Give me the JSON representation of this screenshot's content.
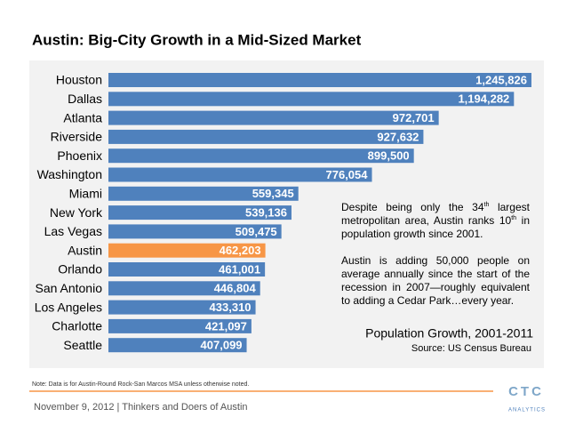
{
  "chart_data": {
    "type": "bar",
    "orientation": "horizontal",
    "title": "Austin: Big-City Growth in a Mid-Sized Market",
    "categories": [
      "Houston",
      "Dallas",
      "Atlanta",
      "Riverside",
      "Phoenix",
      "Washington",
      "Miami",
      "New York",
      "Las Vegas",
      "Austin",
      "Orlando",
      "San Antonio",
      "Los Angeles",
      "Charlotte",
      "Seattle"
    ],
    "values": [
      1245826,
      1194282,
      972701,
      927632,
      899500,
      776054,
      559345,
      539136,
      509475,
      462203,
      461001,
      446804,
      433310,
      421097,
      407099
    ],
    "value_labels": [
      "1,245,826",
      "1,194,282",
      "972,701",
      "927,632",
      "899,500",
      "776,054",
      "559,345",
      "539,136",
      "509,475",
      "462,203",
      "461,001",
      "446,804",
      "433,310",
      "421,097",
      "407,099"
    ],
    "colors": [
      "#4f81bd",
      "#4f81bd",
      "#4f81bd",
      "#4f81bd",
      "#4f81bd",
      "#4f81bd",
      "#4f81bd",
      "#4f81bd",
      "#4f81bd",
      "#f79646",
      "#4f81bd",
      "#4f81bd",
      "#4f81bd",
      "#4f81bd",
      "#4f81bd"
    ],
    "annotation": {
      "paragraph1": [
        "Despite being only the 34",
        "th",
        " largest metropolitan area, Austin ranks 10",
        "th",
        " in population growth since 2001."
      ],
      "paragraph2": "Austin is adding 50,000 people on average annually since the start of the recession in 2007—roughly equivalent to adding a Cedar Park…every year.",
      "caption": "Population Growth, 2001-2011",
      "source": "Source: US Census Bureau"
    },
    "note": "Note: Data is for Austin-Round Rock-San Marcos MSA unless otherwise noted.",
    "footer": "November 9, 2012 | Thinkers and Doers of Austin",
    "logo": {
      "mark": "CTC",
      "text": "ANALYTICS"
    }
  }
}
